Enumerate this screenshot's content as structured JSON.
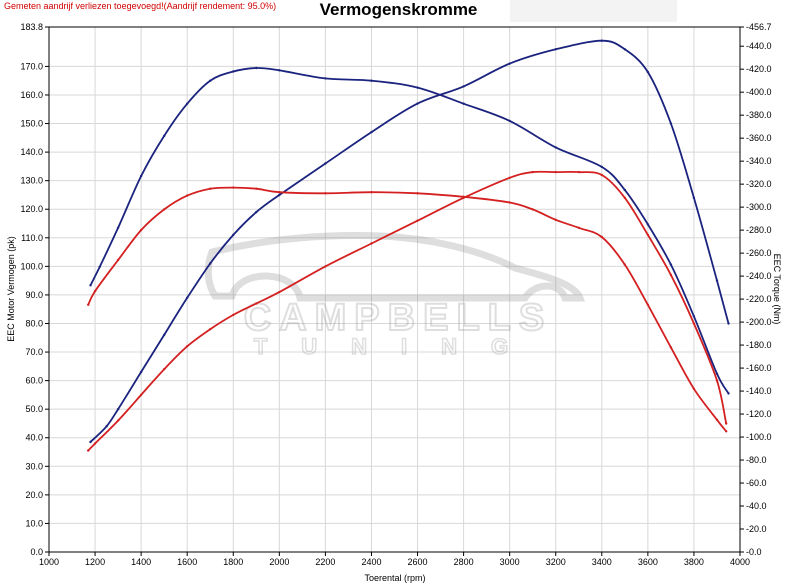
{
  "top_note": "Gemeten aandrijf verliezen toegevoegd!(Aandrijf rendement: 95.0%)",
  "watermark": {
    "line1": "CAMPBELLS",
    "line2": "TUNING"
  },
  "colors": {
    "blue": "#1a237e",
    "red": "#d42020",
    "grid": "#d8d8d8"
  },
  "chart_data": {
    "type": "line",
    "title": "Vermogenskromme",
    "xlabel": "Toerental (rpm)",
    "ylabel": "EEC Motor Vermogen (pk)",
    "y2label": "EEC Torque (Nm)",
    "xlim": [
      1000,
      4000
    ],
    "ylim": [
      0,
      183.8
    ],
    "y2lim": [
      0,
      456.7
    ],
    "grid": true,
    "x_ticks": [
      1000,
      1200,
      1400,
      1600,
      1800,
      2000,
      2200,
      2400,
      2600,
      2800,
      3000,
      3200,
      3400,
      3600,
      3800,
      4000
    ],
    "y_ticks": [
      "0.0",
      "10.0",
      "20.0",
      "30.0",
      "40.0",
      "50.0",
      "60.0",
      "70.0",
      "80.0",
      "90.0",
      "100.0",
      "110.0",
      "120.0",
      "130.0",
      "140.0",
      "150.0",
      "160.0",
      "170.0",
      "183.8"
    ],
    "y_tick_values": [
      0,
      10,
      20,
      30,
      40,
      50,
      60,
      70,
      80,
      90,
      100,
      110,
      120,
      130,
      140,
      150,
      160,
      170,
      183.8
    ],
    "y2_ticks": [
      "0.0",
      "20.0",
      "40.0",
      "60.0",
      "80.0",
      "100.0",
      "120.0",
      "140.0",
      "160.0",
      "180.0",
      "200.0",
      "220.0",
      "240.0",
      "260.0",
      "280.0",
      "300.0",
      "320.0",
      "340.0",
      "360.0",
      "380.0",
      "400.0",
      "420.0",
      "440.0",
      "456.7"
    ],
    "y2_tick_values": [
      0,
      20,
      40,
      60,
      80,
      100,
      120,
      140,
      160,
      180,
      200,
      220,
      240,
      260,
      280,
      300,
      320,
      340,
      360,
      380,
      400,
      420,
      440,
      456.7
    ],
    "series": [
      {
        "color": "blue",
        "axis": "left",
        "x": [
          1180,
          1250,
          1300,
          1400,
          1500,
          1600,
          1700,
          1800,
          1900,
          2000,
          2200,
          2400,
          2600,
          2800,
          3000,
          3200,
          3400,
          3500,
          3600,
          3700,
          3800,
          3900,
          3950
        ],
        "y": [
          38.5,
          44,
          50,
          63,
          76,
          89,
          101,
          111,
          119,
          125,
          136,
          147,
          157,
          163,
          171,
          176,
          179,
          176,
          168,
          150,
          124,
          95,
          80
        ]
      },
      {
        "color": "blue",
        "axis": "right",
        "x": [
          1180,
          1220,
          1300,
          1400,
          1500,
          1600,
          1700,
          1800,
          1900,
          2000,
          2200,
          2400,
          2600,
          2800,
          3000,
          3200,
          3400,
          3500,
          3600,
          3700,
          3800,
          3900,
          3950
        ],
        "y": [
          232,
          248,
          282,
          327,
          362,
          390,
          410,
          418,
          421,
          419,
          412,
          410,
          404,
          390,
          375,
          352,
          335,
          315,
          285,
          250,
          205,
          155,
          138
        ]
      },
      {
        "color": "red",
        "axis": "left",
        "x": [
          1170,
          1200,
          1300,
          1400,
          1500,
          1600,
          1700,
          1800,
          1900,
          2000,
          2200,
          2400,
          2600,
          2800,
          3000,
          3100,
          3200,
          3300,
          3400,
          3500,
          3600,
          3700,
          3800,
          3900,
          3940
        ],
        "y": [
          35.5,
          38,
          46,
          55,
          64,
          72,
          78,
          83,
          87,
          91,
          100,
          108,
          116,
          124,
          131,
          133,
          133,
          133,
          132,
          124,
          111,
          97,
          80,
          60,
          45
        ]
      },
      {
        "color": "red",
        "axis": "right",
        "x": [
          1170,
          1200,
          1300,
          1400,
          1500,
          1600,
          1700,
          1800,
          1900,
          2000,
          2200,
          2400,
          2600,
          2800,
          3000,
          3100,
          3200,
          3300,
          3400,
          3500,
          3600,
          3700,
          3800,
          3900,
          3940
        ],
        "y": [
          215,
          227,
          254,
          280,
          298,
          310,
          316,
          317,
          316,
          313,
          312,
          313,
          312,
          309,
          304,
          298,
          289,
          282,
          274,
          250,
          215,
          178,
          142,
          115,
          105
        ]
      }
    ]
  }
}
